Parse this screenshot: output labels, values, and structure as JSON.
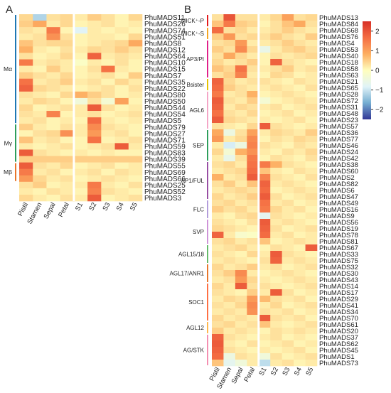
{
  "panels": [
    "A",
    "B"
  ],
  "colorbar": {
    "ticks": [
      2,
      1,
      0,
      -1,
      -2
    ],
    "tick_labels": [
      "2",
      "1",
      "0",
      "−1",
      "−2"
    ],
    "colors": [
      "#313695",
      "#74add1",
      "#e0f3f8",
      "#fffebe",
      "#fdae61",
      "#f46d43",
      "#d73027"
    ]
  },
  "chart_data": [
    {
      "type": "heatmap",
      "panel": "A",
      "columns": [
        "Pistil",
        "Stamen",
        "Sepal",
        "Petal",
        "S1",
        "S2",
        "S3",
        "S4",
        "S5"
      ],
      "vmin": -2.5,
      "vmax": 2.5,
      "rows": [
        "PhuMADS11",
        "PhuMADS26",
        "PhuMADS74",
        "PhuMADS51",
        "PhuMADS8",
        "PhuMADS12",
        "PhuMADS64",
        "PhuMADS10",
        "PhuMADS15",
        "PhuMADS7",
        "PhuMADS35",
        "PhuMADS22",
        "PhuMADS80",
        "PhuMADS50",
        "PhuMADS44",
        "PhuMADS54",
        "PhuMADS5",
        "PhuMADS79",
        "PhuMADS27",
        "PhuMADS71",
        "PhuMADS59",
        "PhuMADS83",
        "PhuMADS39",
        "PhuMADS55",
        "PhuMADS69",
        "PhuMADS66",
        "PhuMADS25",
        "PhuMADS52",
        "PhuMADS3"
      ],
      "groups": [
        {
          "label": "Mα",
          "start": 0,
          "end": 16,
          "color": "#1f78b4"
        },
        {
          "label": "Mγ",
          "start": 17,
          "end": 22,
          "color": "#2e9e5c"
        },
        {
          "label": "Mβ",
          "start": 23,
          "end": 25,
          "color": "#e8762b"
        }
      ],
      "values": [
        [
          0.4,
          -1.2,
          0.3,
          0.4,
          0.2,
          0.5,
          0.3,
          0.1,
          0.4
        ],
        [
          0.5,
          0.9,
          0.2,
          0.4,
          0.1,
          0.2,
          0.3,
          0.1,
          0.2
        ],
        [
          0.3,
          0.2,
          1.5,
          0.1,
          -0.8,
          0.2,
          0.1,
          0.2,
          0.1
        ],
        [
          0.2,
          0.3,
          1.2,
          0.3,
          0.1,
          0.2,
          0.2,
          0.1,
          0.4
        ],
        [
          0.6,
          0.3,
          0.4,
          0.4,
          0.1,
          0.2,
          0.3,
          0.4,
          0.9
        ],
        [
          0.8,
          0.2,
          0.1,
          0.3,
          0.2,
          0.4,
          0.3,
          0.5,
          0.3
        ],
        [
          0.3,
          0.1,
          0.2,
          0.4,
          0.1,
          1.8,
          0.2,
          0.3,
          0.2
        ],
        [
          1.5,
          0.2,
          0.3,
          0.2,
          -0.1,
          0.2,
          0.1,
          0.3,
          0.1
        ],
        [
          0.2,
          0.1,
          0.5,
          0.2,
          0.1,
          0.3,
          1.6,
          0.2,
          0.1
        ],
        [
          0.5,
          0.3,
          0.2,
          0.4,
          0.1,
          0.2,
          0.3,
          0.1,
          0.5
        ],
        [
          1.6,
          0.2,
          0.3,
          0.5,
          0.2,
          0.3,
          0.1,
          0.4,
          0.2
        ],
        [
          1.8,
          0.4,
          0.3,
          0.2,
          0.1,
          0.2,
          0.3,
          0.1,
          0.3
        ],
        [
          0.3,
          0.2,
          0.1,
          0.4,
          0.8,
          0.5,
          0.3,
          0.1,
          0.2
        ],
        [
          0.2,
          0.4,
          0.3,
          0.1,
          -0.4,
          0.3,
          -0.3,
          1.0,
          0.1
        ],
        [
          0.4,
          0.1,
          0.2,
          0.3,
          0.2,
          1.9,
          0.3,
          0.1,
          0.2
        ],
        [
          0.3,
          0.2,
          1.4,
          0.1,
          0.2,
          0.3,
          0.1,
          0.2,
          0.3
        ],
        [
          0.2,
          0.3,
          0.1,
          0.2,
          0.1,
          1.7,
          0.2,
          0.1,
          0.2
        ],
        [
          0.5,
          0.2,
          0.1,
          0.3,
          0.2,
          1.3,
          0.3,
          0.2,
          0.1
        ],
        [
          0.1,
          0.3,
          0.4,
          1.2,
          0.2,
          1.1,
          0.2,
          0.3,
          0.1
        ],
        [
          0.6,
          0.2,
          0.3,
          0.1,
          0.1,
          1.6,
          0.1,
          0.2,
          0.3
        ],
        [
          0.2,
          0.1,
          0.2,
          0.3,
          0.1,
          0.2,
          0.3,
          1.9,
          0.2
        ],
        [
          1.9,
          0.3,
          0.2,
          0.1,
          0.2,
          0.1,
          0.2,
          0.1,
          0.1
        ],
        [
          0.5,
          0.5,
          0.5,
          0.5,
          0.5,
          0.5,
          0.5,
          0.5,
          0.5
        ],
        [
          1.9,
          0.3,
          0.2,
          0.4,
          0.1,
          0.2,
          0.3,
          0.1,
          0.2
        ],
        [
          1.5,
          0.2,
          0.3,
          0.1,
          0.2,
          0.3,
          0.1,
          0.3,
          0.2
        ],
        [
          1.1,
          0.4,
          0.2,
          0.3,
          0.1,
          0.2,
          0.3,
          0.2,
          0.1
        ],
        [
          0.3,
          0.5,
          0.1,
          0.2,
          0.2,
          1.5,
          0.2,
          0.1,
          0.3
        ],
        [
          0.2,
          0.1,
          0.3,
          0.2,
          0.1,
          1.4,
          0.3,
          0.2,
          0.1
        ],
        [
          0.4,
          0.2,
          0.1,
          0.3,
          0.2,
          1.9,
          0.1,
          0.2,
          0.3
        ]
      ]
    },
    {
      "type": "heatmap",
      "panel": "B",
      "columns": [
        "Pistil",
        "Stamen",
        "Sepal",
        "Petal",
        "S1",
        "S2",
        "S3",
        "S4",
        "S5"
      ],
      "vmin": -2.5,
      "vmax": 2.5,
      "rows": [
        "PhuMADS13",
        "PhuMADS84",
        "PhuMADS68",
        "PhuMADS76",
        "PhuMADS4",
        "PhuMADS53",
        "PhuMADS40",
        "PhuMADS18",
        "PhuMADS58",
        "PhuMADS63",
        "PhuMADS21",
        "PhuMADS65",
        "PhuMADS28",
        "PhuMADS72",
        "PhuMADS31",
        "PhuMADS48",
        "PhuMADS23",
        "PhuMADS57",
        "PhuMADS36",
        "PhuMADS77",
        "PhuMADS46",
        "PhuMADS24",
        "PhuMADS42",
        "PhuMADS38",
        "PhuMADS60",
        "PhuMADS2",
        "PhuMADS82",
        "PhuMADS6",
        "PhuMADS47",
        "PhuMADS49",
        "PhuMADS16",
        "PhuMADS9",
        "PhuMADS56",
        "PhuMADS19",
        "PhuMADS78",
        "PhuMADS81",
        "PhuMADS67",
        "PhuMADS33",
        "PhuMADS75",
        "PhuMADS32",
        "PhuMADS30",
        "PhuMADS43",
        "PhuMADS14",
        "PhuMADS17",
        "PhuMADS29",
        "PhuMADS41",
        "PhuMADS34",
        "PhuMADS70",
        "PhuMADS61",
        "PhuMADS20",
        "PhuMADS37",
        "PhuMADS62",
        "PhuMADS45",
        "PhuMADS1",
        "PhuMADS73"
      ],
      "groups": [
        {
          "label": "MICK⁺-P",
          "start": 0,
          "end": 1,
          "color": "#e41a1c"
        },
        {
          "label": "MICK⁺-S",
          "start": 2,
          "end": 3,
          "color": "#f5a623"
        },
        {
          "label": "AP3/PI",
          "start": 4,
          "end": 9,
          "color": "#e0218a"
        },
        {
          "label": "Bsister",
          "start": 10,
          "end": 11,
          "color": "#e6c200"
        },
        {
          "label": "AGL6",
          "start": 12,
          "end": 17,
          "color": "#f4a6c7"
        },
        {
          "label": "SEP",
          "start": 18,
          "end": 22,
          "color": "#2e9e5c"
        },
        {
          "label": "AP1/FUL",
          "start": 23,
          "end": 28,
          "color": "#984ea3"
        },
        {
          "label": "FLC",
          "start": 29,
          "end": 31,
          "color": "#b39ddb"
        },
        {
          "label": "SVP",
          "start": 32,
          "end": 35,
          "color": "#ce93d8"
        },
        {
          "label": "AGL15/18",
          "start": 36,
          "end": 38,
          "color": "#66bb6a"
        },
        {
          "label": "AGL17/ANR1",
          "start": 39,
          "end": 41,
          "color": "#e8762b"
        },
        {
          "label": "SOC1",
          "start": 42,
          "end": 47,
          "color": "#ff7043"
        },
        {
          "label": "AGL12",
          "start": 48,
          "end": 49,
          "color": "#ffb74d"
        },
        {
          "label": "AG/STK",
          "start": 50,
          "end": 54,
          "color": "#f48fb1"
        }
      ],
      "values": [
        [
          0.3,
          2.0,
          0.3,
          0.3,
          0.2,
          0.4,
          1.0,
          0.3,
          0.4
        ],
        [
          0.6,
          1.5,
          0.5,
          0.4,
          0.1,
          0.3,
          0.6,
          0.9,
          0.3
        ],
        [
          1.7,
          0.3,
          0.4,
          0.2,
          0.2,
          0.3,
          0.5,
          0.3,
          0.2
        ],
        [
          0.5,
          1.1,
          0.3,
          0.4,
          0.3,
          0.5,
          0.3,
          0.2,
          0.5
        ],
        [
          0.3,
          0.4,
          1.1,
          0.2,
          0.2,
          0.3,
          0.5,
          0.3,
          0.2
        ],
        [
          0.5,
          0.3,
          1.3,
          0.4,
          -0.6,
          0.2,
          0.4,
          0.5,
          0.3
        ],
        [
          0.3,
          0.9,
          0.4,
          0.2,
          0.1,
          0.3,
          0.2,
          0.3,
          0.4
        ],
        [
          0.4,
          0.2,
          0.3,
          0.5,
          0.1,
          1.8,
          0.3,
          0.2,
          0.1
        ],
        [
          0.6,
          0.4,
          1.6,
          0.3,
          0.2,
          0.3,
          0.5,
          0.2,
          0.3
        ],
        [
          0.3,
          0.5,
          1.4,
          0.2,
          0.1,
          0.4,
          0.3,
          0.1,
          0.2
        ],
        [
          1.8,
          0.4,
          0.2,
          0.3,
          0.3,
          0.2,
          0.1,
          0.3,
          0.2
        ],
        [
          1.7,
          0.5,
          0.3,
          0.2,
          0.2,
          0.3,
          0.2,
          0.1,
          0.3
        ],
        [
          1.5,
          0.2,
          0.3,
          0.8,
          0.1,
          0.2,
          0.3,
          0.2,
          0.1
        ],
        [
          1.9,
          0.3,
          0.2,
          0.5,
          -0.3,
          0.1,
          0.2,
          0.3,
          0.2
        ],
        [
          1.8,
          0.2,
          0.4,
          0.3,
          0.2,
          0.3,
          0.1,
          0.2,
          0.3
        ],
        [
          1.6,
          0.3,
          0.2,
          0.4,
          0.1,
          0.2,
          0.3,
          0.1,
          0.2
        ],
        [
          1.9,
          0.4,
          0.3,
          0.2,
          0.2,
          0.1,
          0.2,
          0.3,
          0.1
        ],
        [
          0.3,
          0.2,
          0.1,
          0.4,
          1.9,
          0.3,
          0.2,
          0.1,
          0.2
        ],
        [
          0.9,
          -0.5,
          0.3,
          1.0,
          0.2,
          0.4,
          0.3,
          0.2,
          0.5
        ],
        [
          1.1,
          0.2,
          0.4,
          1.3,
          0.1,
          0.3,
          0.2,
          0.4,
          0.3
        ],
        [
          0.2,
          -0.9,
          -0.5,
          1.4,
          0.3,
          0.2,
          0.1,
          0.3,
          0.2
        ],
        [
          0.4,
          -0.3,
          0.8,
          1.2,
          0.2,
          0.1,
          0.3,
          0.2,
          0.4
        ],
        [
          0.2,
          -0.6,
          0.3,
          1.5,
          0.1,
          0.3,
          0.2,
          0.1,
          0.3
        ],
        [
          0.3,
          0.4,
          0.2,
          1.6,
          1.5,
          0.8,
          0.3,
          0.2,
          0.1
        ],
        [
          0.2,
          0.3,
          0.4,
          1.7,
          0.6,
          0.2,
          0.1,
          0.3,
          0.2
        ],
        [
          0.8,
          0.2,
          0.3,
          1.9,
          1.4,
          0.3,
          0.2,
          0.1,
          0.3
        ],
        [
          0.3,
          0.5,
          0.2,
          0.6,
          1.8,
          0.2,
          0.3,
          0.2,
          0.1
        ],
        [
          0.2,
          0.3,
          0.4,
          0.3,
          1.7,
          0.1,
          0.2,
          0.3,
          0.2
        ],
        [
          0.4,
          0.2,
          0.3,
          0.5,
          1.9,
          0.3,
          0.1,
          0.2,
          0.3
        ],
        [
          0.3,
          0.4,
          0.2,
          0.3,
          1.6,
          0.2,
          0.3,
          0.1,
          0.2
        ],
        [
          0.5,
          0.3,
          0.4,
          0.2,
          1.5,
          0.4,
          0.2,
          0.3,
          0.1
        ],
        [
          0.2,
          0.1,
          0.3,
          0.4,
          -0.7,
          0.3,
          0.2,
          0.1,
          0.2
        ],
        [
          0.3,
          0.2,
          0.1,
          0.3,
          1.9,
          0.2,
          0.3,
          0.2,
          0.1
        ],
        [
          0.4,
          0.3,
          0.2,
          0.1,
          1.8,
          0.3,
          0.1,
          0.2,
          0.3
        ],
        [
          1.8,
          0.2,
          -0.2,
          -0.1,
          1.7,
          0.2,
          0.3,
          0.1,
          0.2
        ],
        [
          0.3,
          0.4,
          0.2,
          0.3,
          0.6,
          0.1,
          0.2,
          0.3,
          0.2
        ],
        [
          0.2,
          0.3,
          0.4,
          0.2,
          0.1,
          0.3,
          0.2,
          0.1,
          1.9
        ],
        [
          0.3,
          0.2,
          0.1,
          0.4,
          0.2,
          1.9,
          0.3,
          0.2,
          0.1
        ],
        [
          0.2,
          0.3,
          0.2,
          0.1,
          0.3,
          1.8,
          0.2,
          0.3,
          0.2
        ],
        [
          0.4,
          0.2,
          0.3,
          0.5,
          0.2,
          0.3,
          0.1,
          0.2,
          0.3
        ],
        [
          0.3,
          0.5,
          1.3,
          0.2,
          0.1,
          0.2,
          0.3,
          0.2,
          0.1
        ],
        [
          0.2,
          0.3,
          1.1,
          0.4,
          0.2,
          0.1,
          0.2,
          0.3,
          0.2
        ],
        [
          0.4,
          0.2,
          1.9,
          0.3,
          0.3,
          0.2,
          0.1,
          0.2,
          0.3
        ],
        [
          0.3,
          0.2,
          0.1,
          0.5,
          0.2,
          1.9,
          0.3,
          0.1,
          0.2
        ],
        [
          0.2,
          0.4,
          0.3,
          1.1,
          0.7,
          0.3,
          0.2,
          0.3,
          0.1
        ],
        [
          0.3,
          0.2,
          0.4,
          1.3,
          0.2,
          0.4,
          0.1,
          0.2,
          0.3
        ],
        [
          0.2,
          0.3,
          0.2,
          1.2,
          0.3,
          0.2,
          0.3,
          0.1,
          0.2
        ],
        [
          0.4,
          0.2,
          0.3,
          0.2,
          1.9,
          0.3,
          0.2,
          0.3,
          0.1
        ],
        [
          0.3,
          0.4,
          0.2,
          0.3,
          0.6,
          0.2,
          0.1,
          0.2,
          0.3
        ],
        [
          0.5,
          0.2,
          0.3,
          0.2,
          0.1,
          0.3,
          0.2,
          0.3,
          0.2
        ],
        [
          1.8,
          0.3,
          0.2,
          0.1,
          0.2,
          0.3,
          0.1,
          0.2,
          0.1
        ],
        [
          1.9,
          0.2,
          0.1,
          0.3,
          0.1,
          0.2,
          0.3,
          0.1,
          0.2
        ],
        [
          1.8,
          0.3,
          0.2,
          0.1,
          0.2,
          0.1,
          0.2,
          0.3,
          0.1
        ],
        [
          1.7,
          -0.5,
          0.3,
          0.2,
          -0.4,
          0.3,
          0.1,
          0.2,
          0.3
        ],
        [
          0.6,
          -0.7,
          -0.4,
          0.2,
          -1.1,
          0.2,
          0.3,
          0.1,
          0.2
        ]
      ]
    }
  ]
}
